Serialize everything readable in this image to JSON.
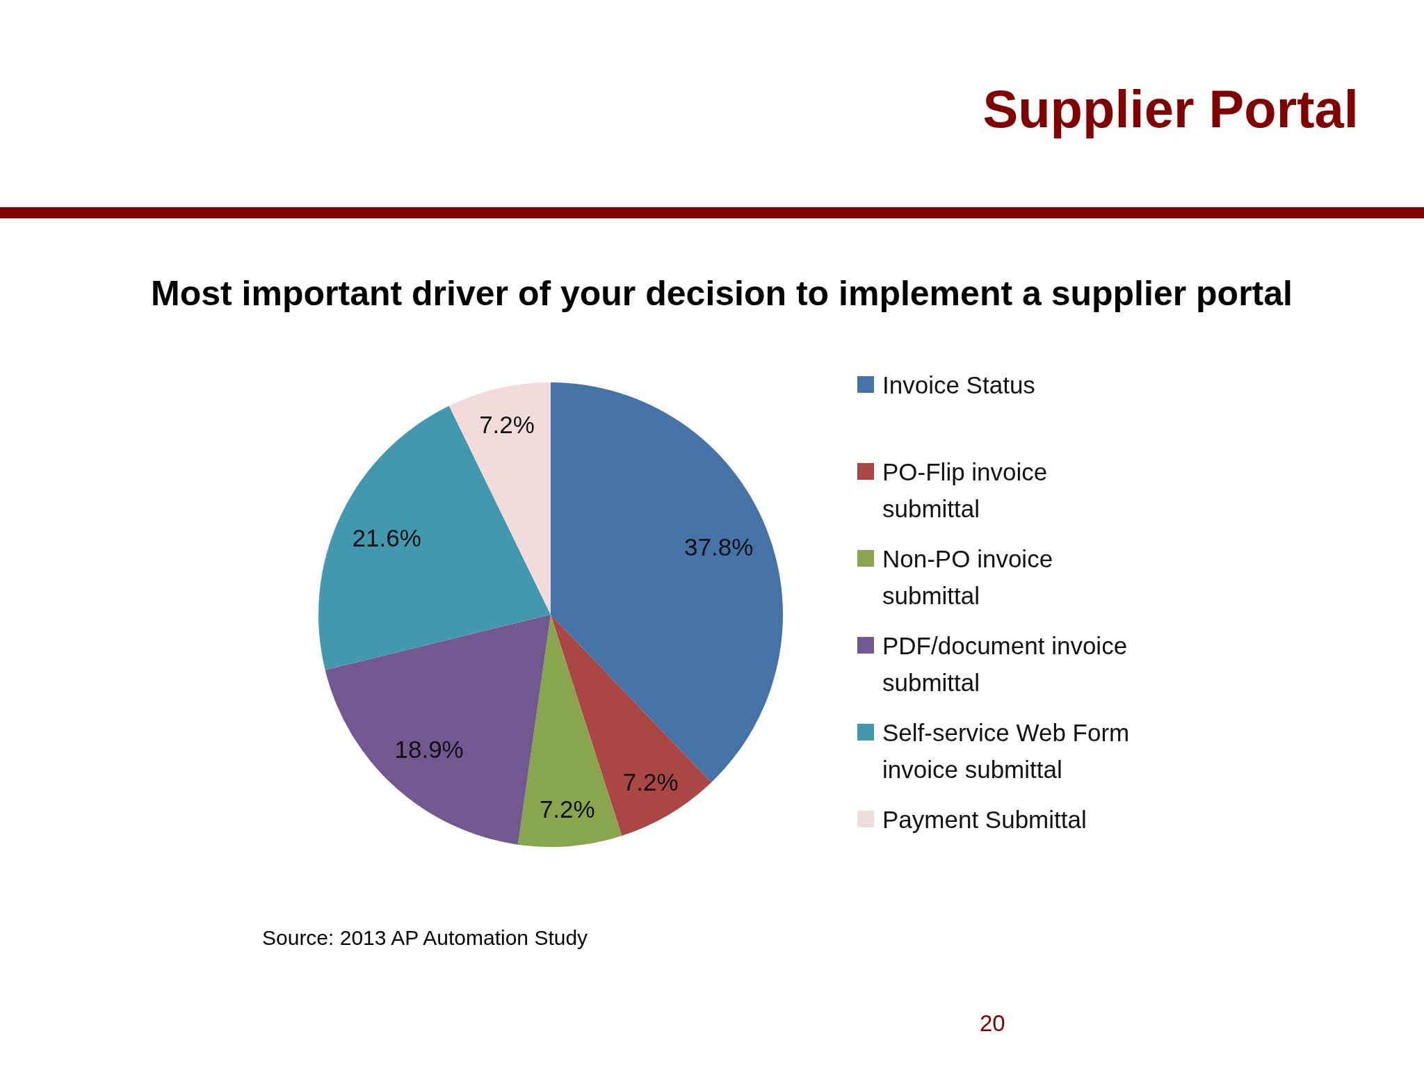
{
  "chart_data": {
    "type": "pie",
    "title": "Supplier Portal",
    "subtitle": "Most important driver of your decision to implement a supplier portal",
    "categories": [
      "Invoice Status",
      "PO-Flip invoice submittal",
      "Non-PO invoice submittal",
      "PDF/document invoice submittal",
      "Self-service Web Form invoice submittal",
      "Payment Submittal"
    ],
    "values": [
      37.8,
      7.2,
      7.2,
      18.9,
      21.6,
      7.2
    ],
    "colors": [
      "#4572a7",
      "#aa4643",
      "#89a54e",
      "#71588f",
      "#4198af",
      "#f2dcdb"
    ],
    "value_labels": [
      "37.8%",
      "7.2%",
      "7.2%",
      "18.9%",
      "21.6%",
      "7.2%"
    ],
    "legend": "right",
    "annotations": [
      "Source: 2013 AP Automation Study",
      "20"
    ]
  }
}
